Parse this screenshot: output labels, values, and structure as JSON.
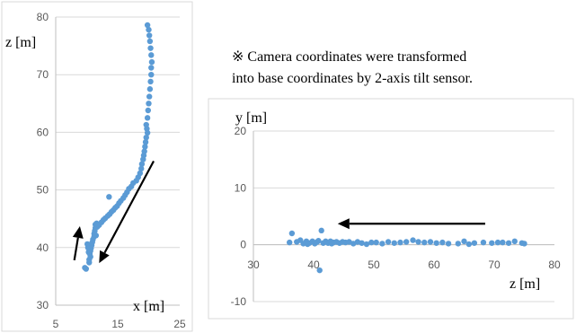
{
  "note": {
    "line1": "※ Camera coordinates were transformed",
    "line2": "into base coordinates by 2-axis tilt sensor."
  },
  "colors": {
    "marker": "#5B9BD5",
    "grid": "#D9D9D9",
    "axis": "#BFBFBF",
    "arrow": "#000000"
  },
  "chart_data": [
    {
      "type": "scatter",
      "title": "",
      "xlabel": "x [m]",
      "ylabel": "z [m]",
      "xlim": [
        5,
        25
      ],
      "ylim": [
        30,
        80
      ],
      "xticks": [
        5,
        15,
        25
      ],
      "yticks": [
        30,
        40,
        50,
        60,
        70,
        80
      ],
      "grid": "horizontal",
      "annotations": [
        "arrow pointing down-left along trajectory",
        "arrow pointing up"
      ],
      "series": [
        {
          "values": [
            [
              19.8,
              78.6
            ],
            [
              20.0,
              77.8
            ],
            [
              20.1,
              76.8
            ],
            [
              20.2,
              75.8
            ],
            [
              20.3,
              74.6
            ],
            [
              20.4,
              73.4
            ],
            [
              20.5,
              72.2
            ],
            [
              20.4,
              71.2
            ],
            [
              20.4,
              70.0
            ],
            [
              20.3,
              68.8
            ],
            [
              20.2,
              67.5
            ],
            [
              20.1,
              66.2
            ],
            [
              20.0,
              65.0
            ],
            [
              19.9,
              63.8
            ],
            [
              19.8,
              62.5
            ],
            [
              19.6,
              61.3
            ],
            [
              19.7,
              60.6
            ],
            [
              19.8,
              59.9
            ],
            [
              19.6,
              59.1
            ],
            [
              19.5,
              58.3
            ],
            [
              19.4,
              57.5
            ],
            [
              19.3,
              56.7
            ],
            [
              19.2,
              56.0
            ],
            [
              19.1,
              55.3
            ],
            [
              18.9,
              54.5
            ],
            [
              18.8,
              53.7
            ],
            [
              18.6,
              52.9
            ],
            [
              18.3,
              52.2
            ],
            [
              18.0,
              51.6
            ],
            [
              17.5,
              51.2
            ],
            [
              17.2,
              50.6
            ],
            [
              16.8,
              50.2
            ],
            [
              16.5,
              49.6
            ],
            [
              16.2,
              49.1
            ],
            [
              15.9,
              48.6
            ],
            [
              15.5,
              48.1
            ],
            [
              15.2,
              47.7
            ],
            [
              14.9,
              47.2
            ],
            [
              14.6,
              46.9
            ],
            [
              14.3,
              46.5
            ],
            [
              14.0,
              46.2
            ],
            [
              13.7,
              45.8
            ],
            [
              13.4,
              45.5
            ],
            [
              13.0,
              45.1
            ],
            [
              12.7,
              44.8
            ],
            [
              12.4,
              44.4
            ],
            [
              13.6,
              48.8
            ],
            [
              11.6,
              44.2
            ],
            [
              11.4,
              44.0
            ],
            [
              11.4,
              43.4
            ],
            [
              11.3,
              42.9
            ],
            [
              11.2,
              42.4
            ],
            [
              11.2,
              41.9
            ],
            [
              11.0,
              41.4
            ],
            [
              10.9,
              40.9
            ],
            [
              10.8,
              40.4
            ],
            [
              10.7,
              39.9
            ],
            [
              10.6,
              39.4
            ],
            [
              10.5,
              38.9
            ],
            [
              10.6,
              38.4
            ],
            [
              10.4,
              37.9
            ],
            [
              10.4,
              37.4
            ],
            [
              9.7,
              36.5
            ],
            [
              9.9,
              36.3
            ],
            [
              10.1,
              40.6
            ],
            [
              10.2,
              40.0
            ],
            [
              10.3,
              39.2
            ],
            [
              11.5,
              42.1
            ],
            [
              11.7,
              43.6
            ],
            [
              12.0,
              43.9
            ]
          ]
        }
      ]
    },
    {
      "type": "scatter",
      "title": "",
      "xlabel": "z [m]",
      "ylabel": "y [m]",
      "xlim": [
        30,
        80
      ],
      "ylim": [
        -10,
        20
      ],
      "xticks": [
        30,
        40,
        50,
        60,
        70,
        80
      ],
      "yticks": [
        -10,
        0,
        10,
        20
      ],
      "grid": "horizontal",
      "annotations": [
        "arrow pointing left"
      ],
      "series": [
        {
          "values": [
            [
              36.0,
              0.4
            ],
            [
              36.4,
              2.0
            ],
            [
              37.8,
              0.8
            ],
            [
              38.3,
              0.2
            ],
            [
              38.8,
              0.6
            ],
            [
              39.3,
              0.3
            ],
            [
              39.8,
              0.6
            ],
            [
              40.2,
              0.2
            ],
            [
              40.6,
              0.5
            ],
            [
              41.0,
              -4.5
            ],
            [
              41.3,
              2.5
            ],
            [
              41.6,
              0.3
            ],
            [
              42.0,
              0.6
            ],
            [
              42.4,
              0.3
            ],
            [
              42.8,
              0.6
            ],
            [
              43.3,
              0.4
            ],
            [
              43.8,
              0.5
            ],
            [
              44.3,
              0.3
            ],
            [
              44.8,
              0.5
            ],
            [
              45.3,
              0.4
            ],
            [
              45.9,
              0.5
            ],
            [
              46.6,
              0.2
            ],
            [
              47.3,
              0.5
            ],
            [
              48.0,
              0.3
            ],
            [
              48.8,
              0.1
            ],
            [
              49.6,
              0.4
            ],
            [
              50.4,
              0.4
            ],
            [
              51.4,
              0.2
            ],
            [
              52.4,
              0.5
            ],
            [
              53.4,
              0.3
            ],
            [
              54.4,
              0.4
            ],
            [
              55.4,
              0.5
            ],
            [
              56.5,
              0.8
            ],
            [
              57.4,
              0.5
            ],
            [
              58.4,
              0.4
            ],
            [
              59.4,
              0.5
            ],
            [
              60.4,
              0.3
            ],
            [
              61.4,
              0.4
            ],
            [
              62.4,
              0.2
            ],
            [
              64.0,
              0.2
            ],
            [
              65.0,
              0.6
            ],
            [
              65.8,
              0.1
            ],
            [
              66.7,
              0.3
            ],
            [
              68.2,
              0.4
            ],
            [
              69.6,
              0.3
            ],
            [
              70.6,
              0.4
            ],
            [
              71.4,
              0.4
            ],
            [
              72.4,
              0.3
            ],
            [
              73.4,
              0.6
            ],
            [
              74.6,
              0.3
            ],
            [
              75.0,
              0.2
            ],
            [
              37.2,
              0.5
            ],
            [
              39.0,
              0.1
            ],
            [
              40.8,
              0.7
            ],
            [
              43.0,
              0.2
            ]
          ]
        }
      ]
    }
  ]
}
